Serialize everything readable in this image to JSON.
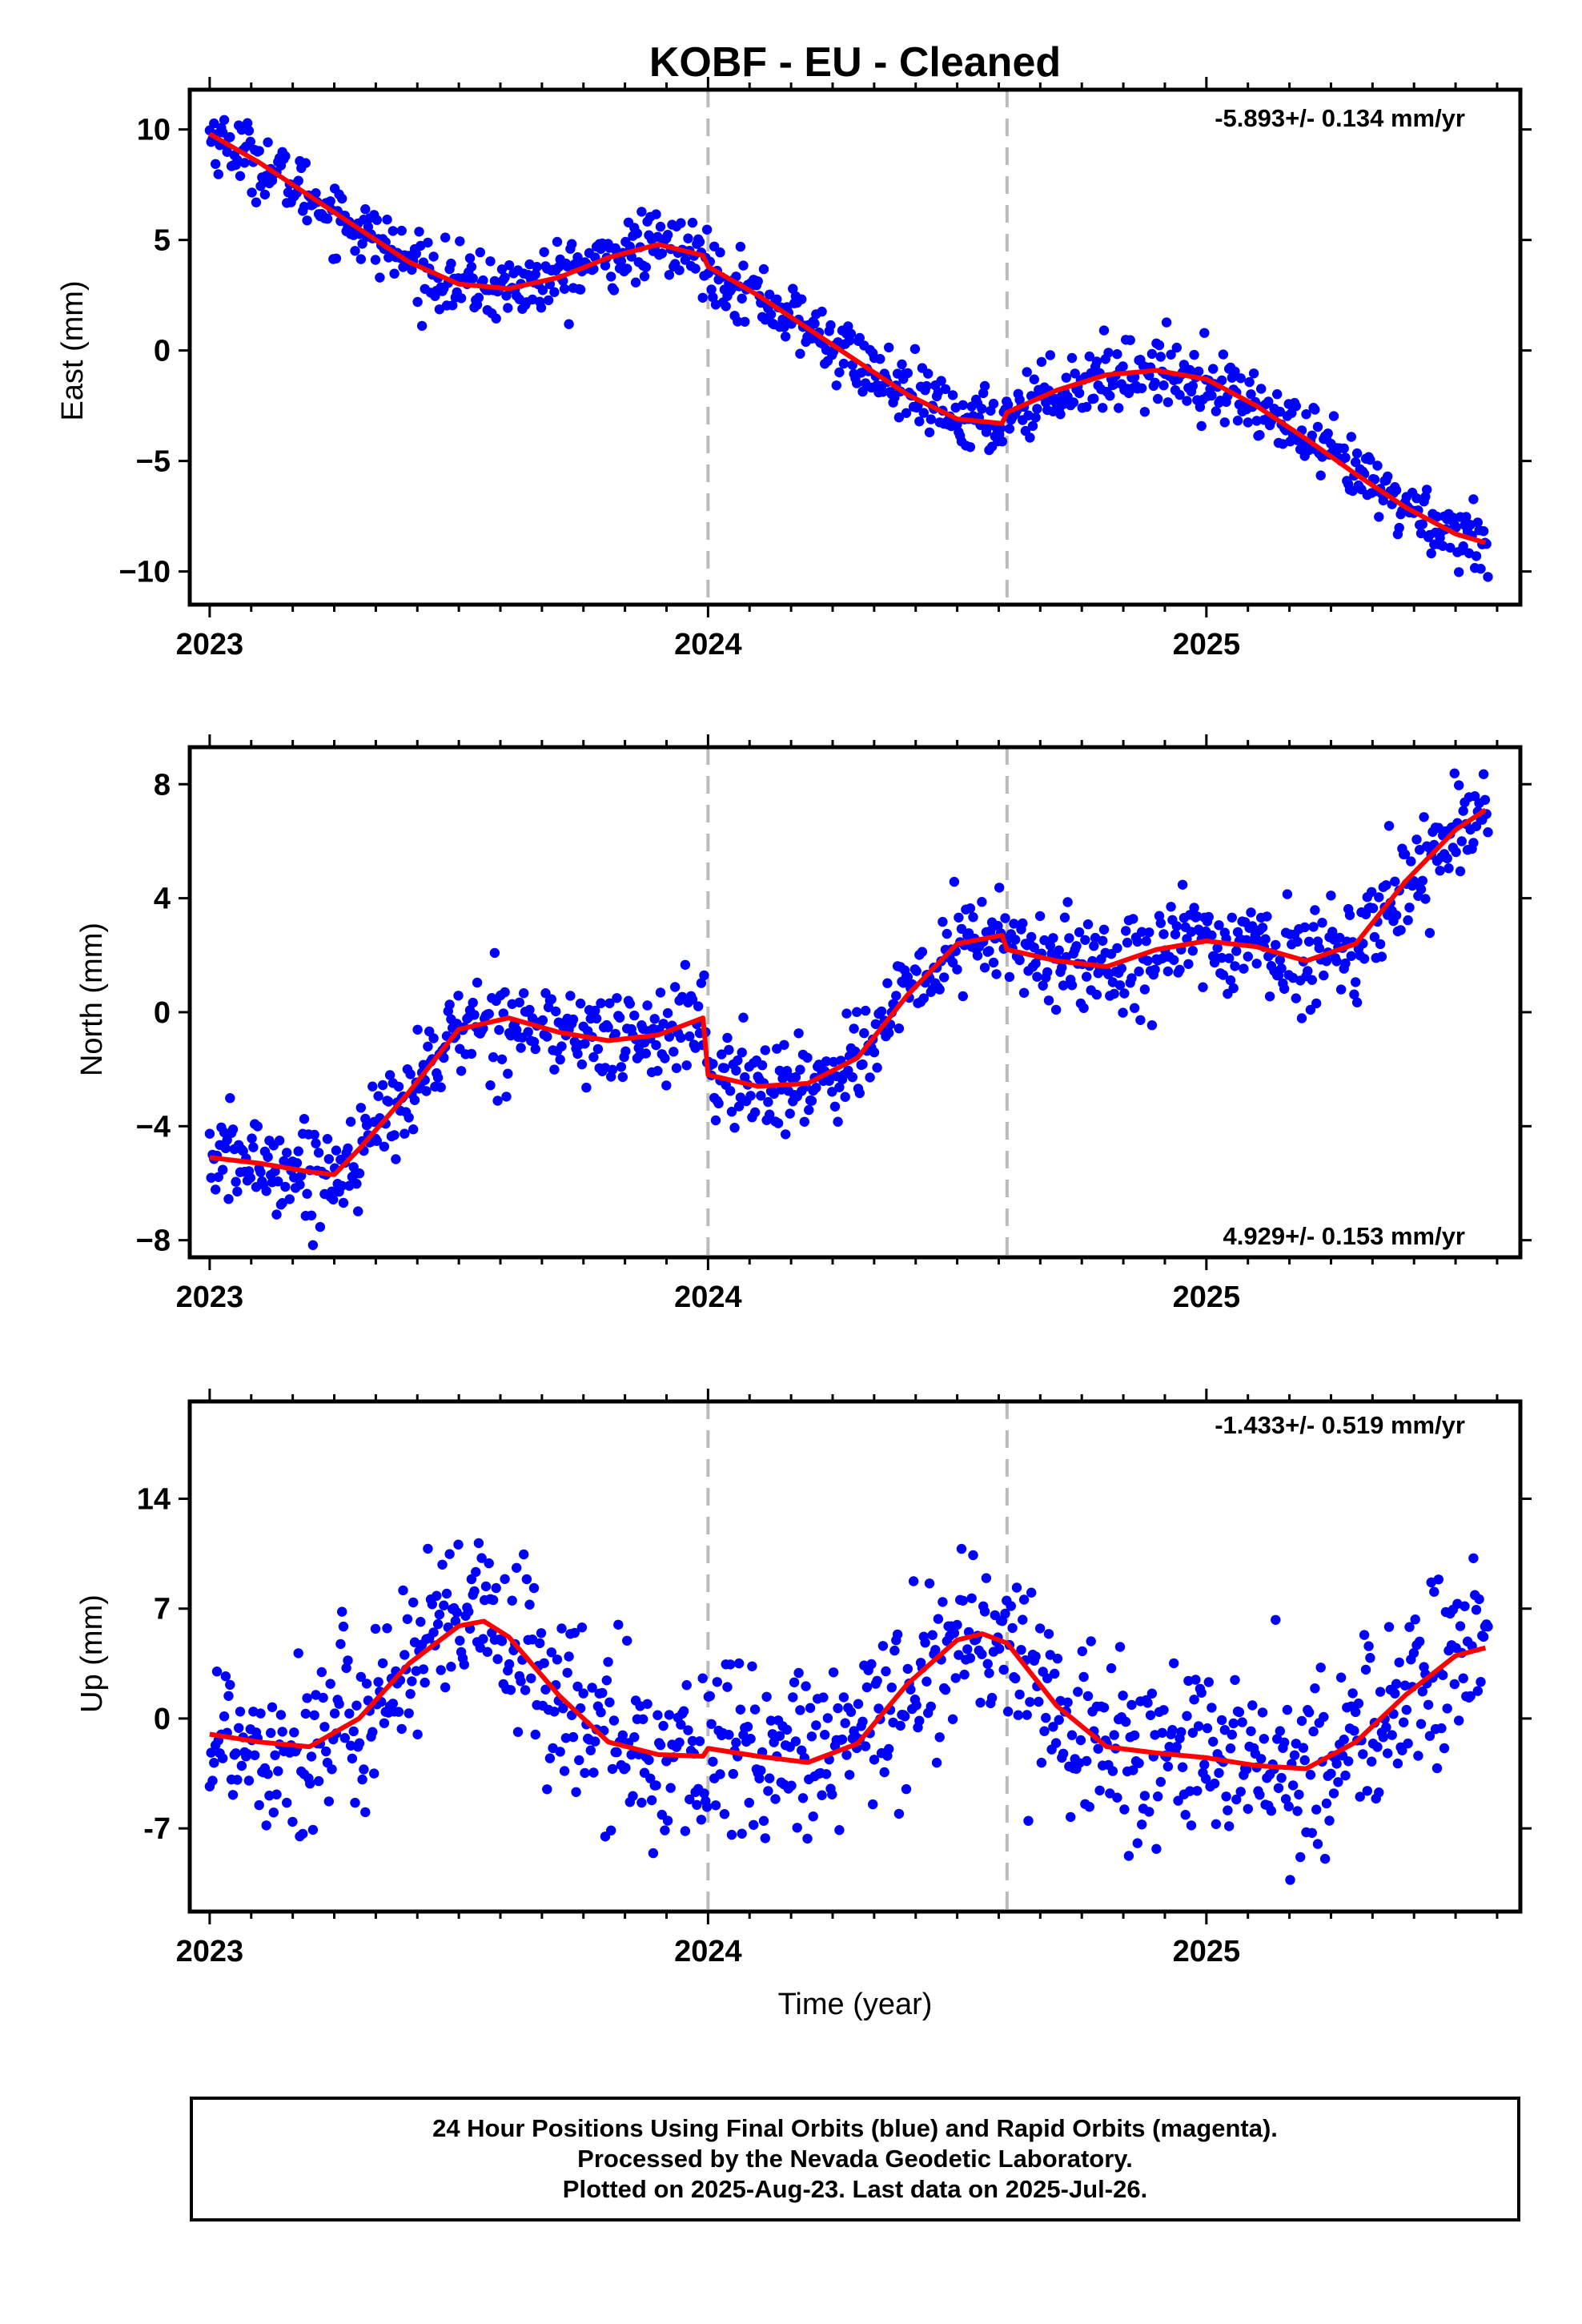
{
  "figure": {
    "title": "KOBF  - EU - Cleaned",
    "xlabel": "Time (year)",
    "footer": [
      "24 Hour Positions Using Final Orbits (blue) and Rapid Orbits (magenta).",
      "Processed by the Nevada Geodetic Laboratory.",
      "Plotted on 2025-Aug-23. Last data on 2025-Jul-26."
    ],
    "colors": {
      "final_orbits": "#0000ff",
      "model_fit": "#ff0000",
      "step_lines": "#bbbbbb",
      "frame": "#000000"
    }
  },
  "chart_data": [
    {
      "type": "scatter",
      "ylabel": "East (mm)",
      "rate_label": "-5.893+/- 0.134 mm/yr",
      "rate_position": "top-right",
      "xlim": [
        2022.96,
        2025.63
      ],
      "ylim": [
        -11.5,
        11.8
      ],
      "xticks": [
        2023,
        2024,
        2025
      ],
      "xtick_labels": [
        "2023",
        "2024",
        "2025"
      ],
      "yticks": [
        10,
        5,
        0,
        -5,
        -10
      ],
      "ytick_labels": [
        "10",
        "5",
        "0",
        "−5",
        "−10"
      ],
      "step_lines_x": [
        2024.0,
        2024.6
      ],
      "model_fit": {
        "x": [
          2023.0,
          2023.1,
          2023.2,
          2023.3,
          2023.4,
          2023.5,
          2023.6,
          2023.7,
          2023.8,
          2023.9,
          2023.99,
          2024.0,
          2024.1,
          2024.2,
          2024.3,
          2024.4,
          2024.5,
          2024.59,
          2024.6,
          2024.7,
          2024.8,
          2024.9,
          2025.0,
          2025.1,
          2025.2,
          2025.3,
          2025.4,
          2025.5,
          2025.56
        ],
        "y": [
          9.8,
          8.5,
          7.0,
          5.5,
          4.0,
          3.0,
          2.8,
          3.3,
          4.2,
          4.8,
          4.3,
          3.8,
          2.5,
          1.0,
          -0.5,
          -2.0,
          -3.1,
          -3.3,
          -2.8,
          -1.8,
          -1.1,
          -0.9,
          -1.3,
          -2.5,
          -4.0,
          -5.6,
          -7.1,
          -8.3,
          -8.7
        ]
      },
      "points": {
        "note": "generated in script; daily positions 2023.00–2025.56",
        "x_start": 2023.0,
        "x_end": 2025.565,
        "count": 880,
        "scatter_sd": 0.75
      }
    },
    {
      "type": "scatter",
      "ylabel": "North (mm)",
      "rate_label": "4.929+/- 0.153 mm/yr",
      "rate_position": "bottom-right",
      "xlim": [
        2022.96,
        2025.63
      ],
      "ylim": [
        -8.6,
        9.3
      ],
      "xticks": [
        2023,
        2024,
        2025
      ],
      "xtick_labels": [
        "2023",
        "2024",
        "2025"
      ],
      "yticks": [
        8,
        4,
        0,
        -4,
        -8
      ],
      "ytick_labels": [
        "8",
        "4",
        "0",
        "−4",
        "−8"
      ],
      "step_lines_x": [
        2024.0,
        2024.6
      ],
      "model_fit": {
        "x": [
          2023.0,
          2023.1,
          2023.2,
          2023.25,
          2023.3,
          2023.4,
          2023.5,
          2023.6,
          2023.7,
          2023.8,
          2023.9,
          2023.99,
          2024.0,
          2024.1,
          2024.2,
          2024.3,
          2024.4,
          2024.5,
          2024.59,
          2024.6,
          2024.7,
          2024.8,
          2024.9,
          2025.0,
          2025.1,
          2025.2,
          2025.3,
          2025.4,
          2025.5,
          2025.56
        ],
        "y": [
          -5.1,
          -5.3,
          -5.6,
          -5.7,
          -4.8,
          -2.8,
          -0.6,
          -0.2,
          -0.7,
          -1.0,
          -0.8,
          -0.2,
          -2.2,
          -2.6,
          -2.5,
          -1.6,
          0.6,
          2.4,
          2.7,
          2.2,
          1.8,
          1.6,
          2.2,
          2.5,
          2.3,
          1.8,
          2.4,
          4.6,
          6.4,
          7.1
        ]
      },
      "points": {
        "note": "generated in script; daily positions 2023.00–2025.56",
        "x_start": 2023.0,
        "x_end": 2025.565,
        "count": 880,
        "scatter_sd": 0.85
      }
    },
    {
      "type": "scatter",
      "ylabel": "Up (mm)",
      "rate_label": "-1.433+/- 0.519 mm/yr",
      "rate_position": "top-right",
      "xlim": [
        2022.96,
        2025.63
      ],
      "ylim": [
        -12.3,
        20.2
      ],
      "xticks": [
        2023,
        2024,
        2025
      ],
      "xtick_labels": [
        "2023",
        "2024",
        "2025"
      ],
      "yticks": [
        14,
        7,
        0,
        -7
      ],
      "ytick_labels": [
        "14",
        "7",
        "0",
        "-7"
      ],
      "step_lines_x": [
        2024.0,
        2024.6
      ],
      "model_fit": {
        "x": [
          2023.0,
          2023.1,
          2023.2,
          2023.3,
          2023.4,
          2023.5,
          2023.55,
          2023.6,
          2023.7,
          2023.8,
          2023.9,
          2023.99,
          2024.0,
          2024.1,
          2024.2,
          2024.3,
          2024.4,
          2024.5,
          2024.55,
          2024.6,
          2024.7,
          2024.8,
          2024.9,
          2025.0,
          2025.1,
          2025.2,
          2025.3,
          2025.4,
          2025.5,
          2025.56
        ],
        "y": [
          -1.0,
          -1.5,
          -1.8,
          0.0,
          3.5,
          5.9,
          6.2,
          5.2,
          1.5,
          -1.5,
          -2.3,
          -2.4,
          -1.9,
          -2.4,
          -2.8,
          -1.6,
          2.2,
          5.0,
          5.4,
          4.8,
          0.8,
          -1.8,
          -2.2,
          -2.5,
          -3.0,
          -3.2,
          -1.5,
          1.5,
          4.0,
          4.5
        ]
      },
      "points": {
        "note": "generated in script; daily positions 2023.00–2025.56",
        "x_start": 2023.0,
        "x_end": 2025.565,
        "count": 880,
        "scatter_sd": 2.9
      }
    }
  ]
}
